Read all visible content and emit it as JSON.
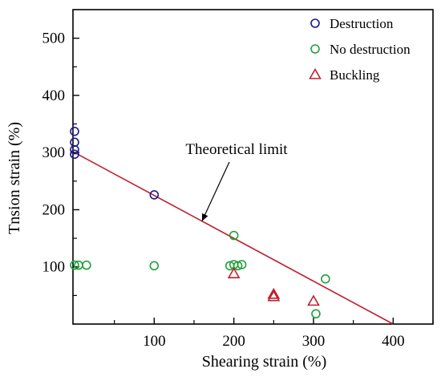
{
  "chart_data": {
    "type": "scatter",
    "xlabel": "Shearing strain (%)",
    "ylabel": "Tnsion  strain (%)",
    "xlim": [
      -2,
      450
    ],
    "ylim": [
      0,
      550
    ],
    "x_ticks": [
      100,
      200,
      300,
      400
    ],
    "y_ticks": [
      100,
      200,
      300,
      400,
      500
    ],
    "x_minor_ticks": [
      50,
      150,
      250,
      350,
      450
    ],
    "y_minor_ticks": [
      50,
      150,
      250,
      350,
      450
    ],
    "grid": false,
    "legend_position": "top-right",
    "series": [
      {
        "name": "Destruction",
        "marker": "circle",
        "color": "#1a1a8c",
        "points": [
          [
            0,
            337
          ],
          [
            0,
            318
          ],
          [
            0,
            305
          ],
          [
            0,
            297
          ],
          [
            100,
            226
          ]
        ]
      },
      {
        "name": "No destruction",
        "marker": "circle",
        "color": "#22a03c",
        "points": [
          [
            0,
            103
          ],
          [
            5,
            103
          ],
          [
            15,
            103
          ],
          [
            100,
            102
          ],
          [
            195,
            102
          ],
          [
            200,
            104
          ],
          [
            205,
            102
          ],
          [
            210,
            104
          ],
          [
            200,
            155
          ],
          [
            315,
            79
          ],
          [
            303,
            18
          ]
        ]
      },
      {
        "name": "Buckling",
        "marker": "triangle",
        "color": "#c0202a",
        "points": [
          [
            200,
            88
          ],
          [
            250,
            52
          ],
          [
            250,
            48
          ],
          [
            300,
            40
          ]
        ]
      }
    ],
    "lines": [
      {
        "name": "",
        "color": "#c0202a",
        "points": [
          [
            0,
            300
          ],
          [
            400,
            0
          ]
        ]
      }
    ],
    "annotations": [
      {
        "text": "Theoretical limit",
        "arrow_to": [
          160,
          180
        ]
      }
    ]
  }
}
